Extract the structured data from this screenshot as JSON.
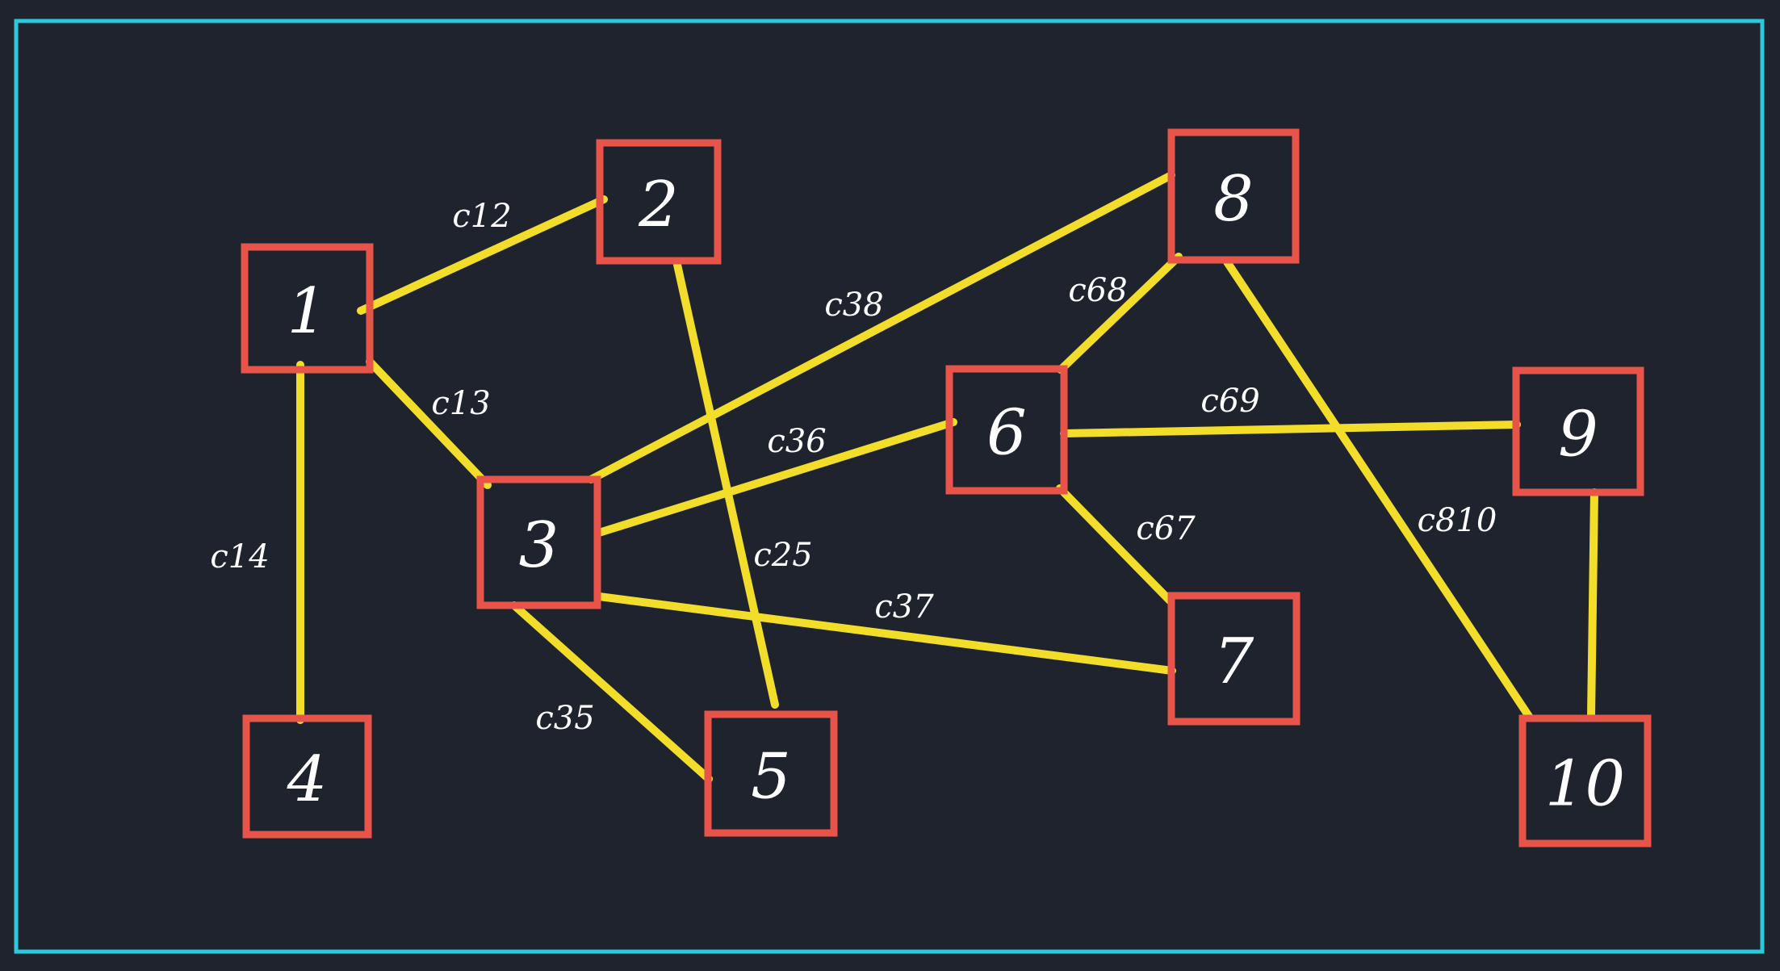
{
  "colors": {
    "background": "#1f232d",
    "frame": "#2ec8dc",
    "node_border": "#e8534a",
    "edge": "#f2dd2a",
    "text": "#ffffff"
  },
  "nodes": [
    {
      "id": "1",
      "label": "1"
    },
    {
      "id": "2",
      "label": "2"
    },
    {
      "id": "3",
      "label": "3"
    },
    {
      "id": "4",
      "label": "4"
    },
    {
      "id": "5",
      "label": "5"
    },
    {
      "id": "6",
      "label": "6"
    },
    {
      "id": "7",
      "label": "7"
    },
    {
      "id": "8",
      "label": "8"
    },
    {
      "id": "9",
      "label": "9"
    },
    {
      "id": "10",
      "label": "10"
    }
  ],
  "edges": [
    {
      "from": "1",
      "to": "2",
      "label": "c12"
    },
    {
      "from": "1",
      "to": "3",
      "label": "c13"
    },
    {
      "from": "1",
      "to": "4",
      "label": "c14"
    },
    {
      "from": "2",
      "to": "5",
      "label": "c25"
    },
    {
      "from": "3",
      "to": "5",
      "label": "c35"
    },
    {
      "from": "3",
      "to": "6",
      "label": "c36"
    },
    {
      "from": "3",
      "to": "7",
      "label": "c37"
    },
    {
      "from": "3",
      "to": "8",
      "label": "c38"
    },
    {
      "from": "6",
      "to": "7",
      "label": "c67"
    },
    {
      "from": "6",
      "to": "8",
      "label": "c68"
    },
    {
      "from": "6",
      "to": "9",
      "label": "c69"
    },
    {
      "from": "8",
      "to": "10",
      "label": "c810"
    },
    {
      "from": "9",
      "to": "10",
      "label": ""
    }
  ]
}
